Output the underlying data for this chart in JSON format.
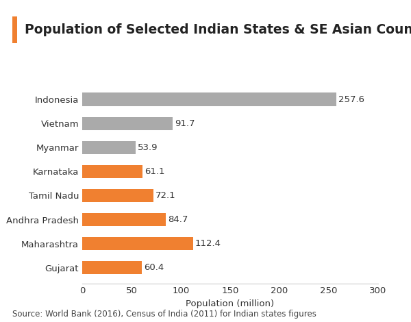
{
  "title": "Population of Selected Indian States & SE Asian Countries",
  "categories": [
    "Gujarat",
    "Maharashtra",
    "Andhra Pradesh",
    "Tamil Nadu",
    "Karnataka",
    "Myanmar",
    "Vietnam",
    "Indonesia"
  ],
  "values": [
    60.4,
    112.4,
    84.7,
    72.1,
    61.1,
    53.9,
    91.7,
    257.6
  ],
  "colors": [
    "#f08030",
    "#f08030",
    "#f08030",
    "#f08030",
    "#f08030",
    "#aaaaaa",
    "#aaaaaa",
    "#aaaaaa"
  ],
  "xlabel": "Population (million)",
  "xlim": [
    0,
    300
  ],
  "xticks": [
    0,
    50,
    100,
    150,
    200,
    250,
    300
  ],
  "title_accent_color": "#f08030",
  "bar_height": 0.55,
  "source_text": "Source: World Bank (2016), Census of India (2011) for Indian states figures",
  "title_fontsize": 13.5,
  "label_fontsize": 9.5,
  "tick_fontsize": 9.5,
  "source_fontsize": 8.5,
  "value_label_fontsize": 9.5,
  "background_color": "#ffffff",
  "spine_color": "#cccccc",
  "text_color": "#333333"
}
